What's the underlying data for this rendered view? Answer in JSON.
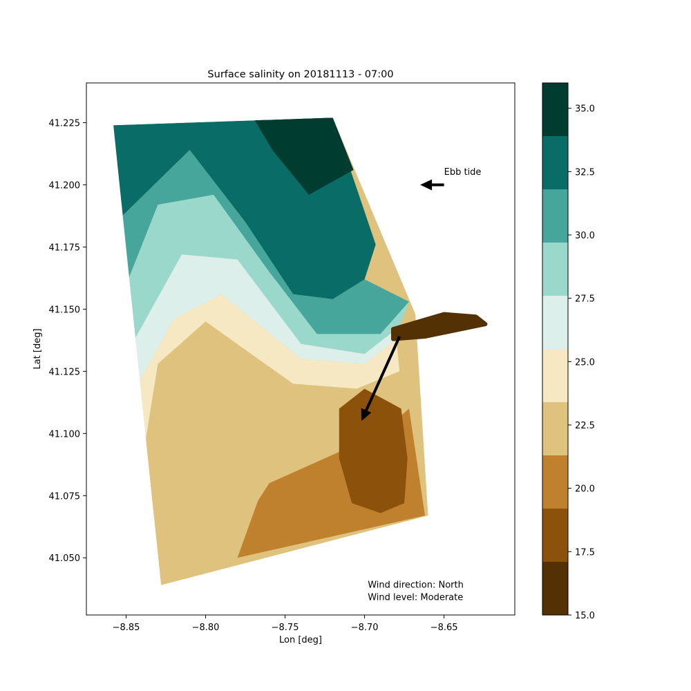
{
  "chart_data": {
    "type": "heatmap",
    "title": "Surface salinity on 20181113 - 07:00",
    "xlabel": "Lon [deg]",
    "ylabel": "Lat [deg]",
    "xlim": [
      -8.875,
      -8.6055
    ],
    "ylim": [
      41.027,
      41.241
    ],
    "xticks": [
      -8.85,
      -8.8,
      -8.75,
      -8.7,
      -8.65
    ],
    "xtick_labels": [
      "−8.85",
      "−8.80",
      "−8.75",
      "−8.70",
      "−8.65"
    ],
    "yticks": [
      41.05,
      41.075,
      41.1,
      41.125,
      41.15,
      41.175,
      41.2,
      41.225
    ],
    "ytick_labels": [
      "41.050",
      "41.075",
      "41.100",
      "41.125",
      "41.150",
      "41.175",
      "41.200",
      "41.225"
    ],
    "grid": false,
    "colorbar": {
      "min": 15.0,
      "max": 36.0,
      "levels": [
        15.0,
        17.1,
        19.2,
        21.3,
        23.4,
        25.5,
        27.6,
        29.7,
        31.8,
        33.9,
        36.0
      ],
      "colors": [
        "#543005",
        "#8c510a",
        "#bf812d",
        "#dfc27d",
        "#f6e8c3",
        "#dcefeb",
        "#9ad8cb",
        "#46a69b",
        "#0a6c66",
        "#003c30"
      ],
      "ticks": [
        15.0,
        17.5,
        20.0,
        22.5,
        25.0,
        27.5,
        30.0,
        32.5,
        35.0
      ],
      "tick_labels": [
        "15.0",
        "17.5",
        "20.0",
        "22.5",
        "25.0",
        "27.5",
        "30.0",
        "32.5",
        "35.0"
      ]
    },
    "domain_outline": [
      [
        -8.858,
        41.224
      ],
      [
        -8.72,
        41.227
      ],
      [
        -8.668,
        41.148
      ],
      [
        -8.66,
        41.067
      ],
      [
        -8.828,
        41.039
      ]
    ],
    "river_plume": [
      [
        -8.682,
        41.142
      ],
      [
        -8.65,
        41.148
      ],
      [
        -8.63,
        41.147
      ],
      [
        -8.624,
        41.144
      ],
      [
        -8.662,
        41.139
      ],
      [
        -8.682,
        41.138
      ]
    ],
    "salinity_bands": [
      {
        "level": 33.9,
        "polygon": [
          [
            -8.77,
            41.227
          ],
          [
            -8.72,
            41.227
          ],
          [
            -8.707,
            41.206
          ],
          [
            -8.735,
            41.196
          ],
          [
            -8.758,
            41.214
          ]
        ]
      },
      {
        "level": 31.8,
        "polygon": [
          [
            -8.858,
            41.224
          ],
          [
            -8.72,
            41.227
          ],
          [
            -8.693,
            41.176
          ],
          [
            -8.7,
            41.162
          ],
          [
            -8.72,
            41.154
          ],
          [
            -8.745,
            41.156
          ],
          [
            -8.775,
            41.185
          ],
          [
            -8.81,
            41.214
          ],
          [
            -8.858,
            41.184
          ]
        ]
      },
      {
        "level": 29.7,
        "polygon": [
          [
            -8.858,
            41.184
          ],
          [
            -8.81,
            41.214
          ],
          [
            -8.775,
            41.185
          ],
          [
            -8.745,
            41.156
          ],
          [
            -8.72,
            41.154
          ],
          [
            -8.7,
            41.162
          ],
          [
            -8.672,
            41.153
          ],
          [
            -8.69,
            41.14
          ],
          [
            -8.73,
            41.14
          ],
          [
            -8.76,
            41.165
          ],
          [
            -8.795,
            41.196
          ],
          [
            -8.83,
            41.192
          ],
          [
            -8.856,
            41.15
          ]
        ]
      },
      {
        "level": 27.6,
        "polygon": [
          [
            -8.856,
            41.15
          ],
          [
            -8.83,
            41.192
          ],
          [
            -8.795,
            41.196
          ],
          [
            -8.76,
            41.165
          ],
          [
            -8.73,
            41.14
          ],
          [
            -8.69,
            41.14
          ],
          [
            -8.672,
            41.153
          ],
          [
            -8.678,
            41.143
          ],
          [
            -8.7,
            41.132
          ],
          [
            -8.74,
            41.136
          ],
          [
            -8.78,
            41.17
          ],
          [
            -8.815,
            41.172
          ],
          [
            -8.848,
            41.134
          ]
        ]
      },
      {
        "level": 25.5,
        "polygon": [
          [
            -8.848,
            41.134
          ],
          [
            -8.815,
            41.172
          ],
          [
            -8.78,
            41.17
          ],
          [
            -8.74,
            41.136
          ],
          [
            -8.7,
            41.132
          ],
          [
            -8.678,
            41.143
          ],
          [
            -8.68,
            41.138
          ],
          [
            -8.7,
            41.128
          ],
          [
            -8.74,
            41.13
          ],
          [
            -8.79,
            41.156
          ],
          [
            -8.82,
            41.146
          ],
          [
            -8.846,
            41.116
          ]
        ]
      },
      {
        "level": 23.4,
        "polygon": [
          [
            -8.846,
            41.116
          ],
          [
            -8.82,
            41.146
          ],
          [
            -8.79,
            41.156
          ],
          [
            -8.74,
            41.13
          ],
          [
            -8.7,
            41.128
          ],
          [
            -8.68,
            41.138
          ],
          [
            -8.678,
            41.125
          ],
          [
            -8.705,
            41.118
          ],
          [
            -8.745,
            41.12
          ],
          [
            -8.8,
            41.145
          ],
          [
            -8.83,
            41.128
          ],
          [
            -8.84,
            41.088
          ]
        ]
      },
      {
        "level": 21.3,
        "polygon": [
          [
            -8.84,
            41.088
          ],
          [
            -8.83,
            41.128
          ],
          [
            -8.8,
            41.145
          ],
          [
            -8.745,
            41.12
          ],
          [
            -8.705,
            41.118
          ],
          [
            -8.678,
            41.125
          ],
          [
            -8.672,
            41.11
          ],
          [
            -8.69,
            41.1
          ],
          [
            -8.76,
            41.08
          ],
          [
            -8.79,
            41.05
          ],
          [
            -8.83,
            41.06
          ]
        ]
      },
      {
        "level": 19.2,
        "polygon": [
          [
            -8.705,
            41.118
          ],
          [
            -8.672,
            41.11
          ],
          [
            -8.662,
            41.067
          ],
          [
            -8.78,
            41.05
          ],
          [
            -8.762,
            41.082
          ],
          [
            -8.72,
            41.102
          ]
        ]
      },
      {
        "level": 17.1,
        "polygon": [
          [
            -8.7,
            41.118
          ],
          [
            -8.677,
            41.11
          ],
          [
            -8.673,
            41.09
          ],
          [
            -8.675,
            41.072
          ],
          [
            -8.69,
            41.068
          ],
          [
            -8.708,
            41.072
          ],
          [
            -8.716,
            41.09
          ],
          [
            -8.716,
            41.11
          ]
        ]
      }
    ],
    "annotations": [
      {
        "text": "Ebb tide",
        "x": -8.65,
        "y": 41.204
      },
      {
        "text": "Wind direction: North",
        "x": -8.698,
        "y": 41.038
      },
      {
        "text": "Wind level: Moderate",
        "x": -8.698,
        "y": 41.033
      }
    ],
    "arrows": [
      {
        "name": "ebb-tide-arrow",
        "from": [
          -8.65,
          41.2
        ],
        "to": [
          -8.665,
          41.2
        ]
      },
      {
        "name": "wind-arrow",
        "from": [
          -8.678,
          41.139
        ],
        "to": [
          -8.702,
          41.105
        ]
      }
    ]
  }
}
